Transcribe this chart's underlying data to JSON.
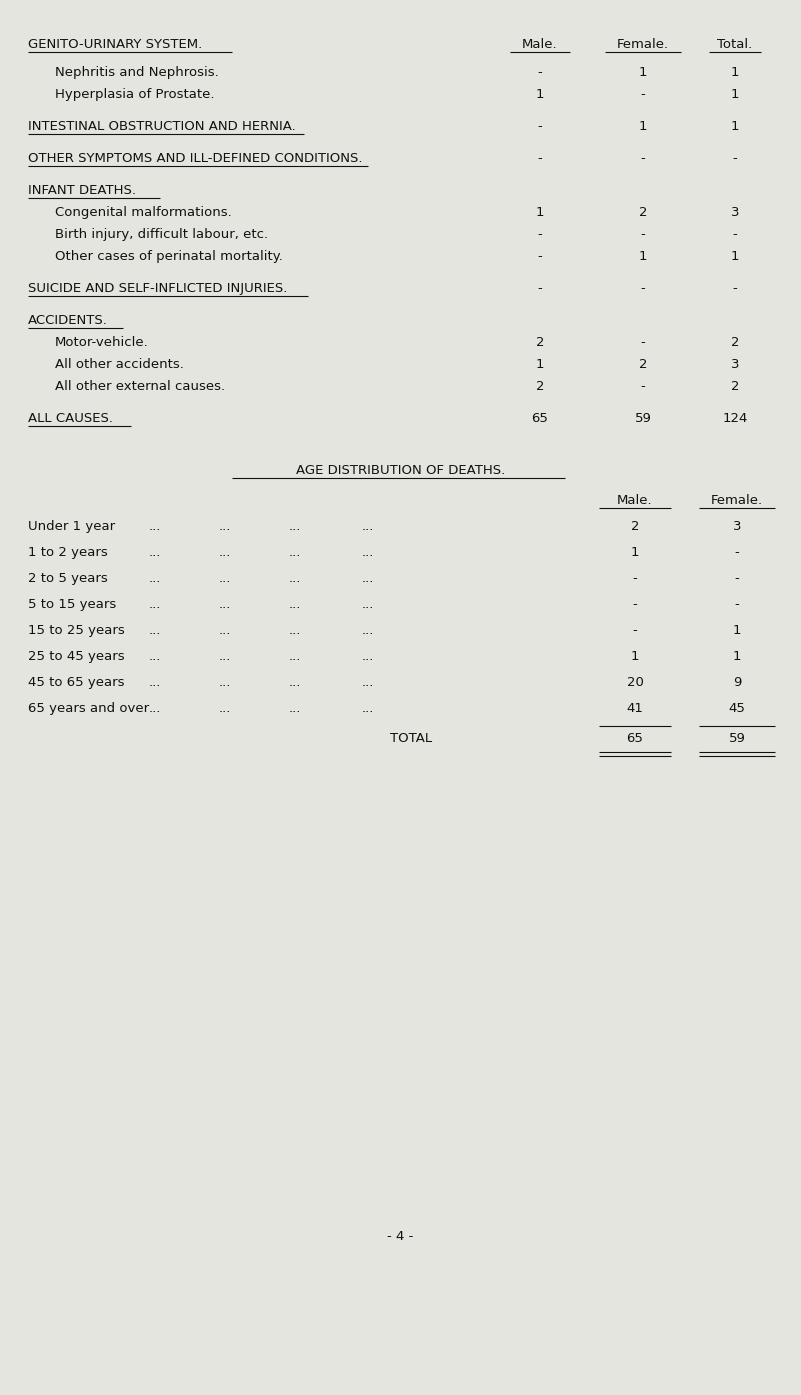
{
  "bg_color": "#e5e5e0",
  "text_color": "#1a1a1a",
  "page_number": "- 4 -",
  "section1": {
    "header": "GENITO-URINARY SYSTEM.",
    "col_headers": [
      "Male.",
      "Female.",
      "Total."
    ],
    "rows": [
      {
        "label": "Nephritis and Nephrosis.",
        "indent": true,
        "male": "-",
        "female": "1",
        "total": "1"
      },
      {
        "label": "Hyperplasia of Prostate.",
        "indent": true,
        "male": "1",
        "female": "-",
        "total": "1"
      }
    ]
  },
  "section2": {
    "header": "INTESTINAL OBSTRUCTION AND HERNIA.",
    "male": "-",
    "female": "1",
    "total": "1"
  },
  "section3": {
    "header": "OTHER SYMPTOMS AND ILL-DEFINED CONDITIONS.",
    "male": "-",
    "female": "-",
    "total": "-"
  },
  "section4": {
    "header": "INFANT DEATHS.",
    "rows": [
      {
        "label": "Congenital malformations.",
        "indent": true,
        "male": "1",
        "female": "2",
        "total": "3"
      },
      {
        "label": "Birth injury, difficult labour, etc.",
        "indent": true,
        "male": "-",
        "female": "-",
        "total": "-"
      },
      {
        "label": "Other cases of perinatal mortality.",
        "indent": true,
        "male": "-",
        "female": "1",
        "total": "1"
      }
    ]
  },
  "section5": {
    "header": "SUICIDE AND SELF-INFLICTED INJURIES.",
    "male": "-",
    "female": "-",
    "total": "-"
  },
  "section6": {
    "header": "ACCIDENTS.",
    "rows": [
      {
        "label": "Motor-vehicle.",
        "indent": true,
        "male": "2",
        "female": "-",
        "total": "2"
      },
      {
        "label": "All other accidents.",
        "indent": true,
        "male": "1",
        "female": "2",
        "total": "3"
      },
      {
        "label": "All other external causes.",
        "indent": true,
        "male": "2",
        "female": "-",
        "total": "2"
      }
    ]
  },
  "section7": {
    "header": "ALL CAUSES.",
    "male": "65",
    "female": "59",
    "total": "124"
  },
  "section8": {
    "header": "AGE DISTRIBUTION OF DEATHS.",
    "col_headers": [
      "Male.",
      "Female."
    ],
    "rows": [
      {
        "label": "Under 1 year",
        "male": "2",
        "female": "3"
      },
      {
        "label": "1 to 2 years",
        "male": "1",
        "female": "-"
      },
      {
        "label": "2 to 5 years",
        "male": "-",
        "female": "-"
      },
      {
        "label": "5 to 15 years",
        "male": "-",
        "female": "-"
      },
      {
        "label": "15 to 25 years",
        "male": "-",
        "female": "1"
      },
      {
        "label": "25 to 45 years",
        "male": "1",
        "female": "1"
      },
      {
        "label": "45 to 65 years",
        "male": "20",
        "female": "9"
      },
      {
        "label": "65 years and over",
        "male": "41",
        "female": "45"
      }
    ],
    "total_label": "TOTAL",
    "total_male": "65",
    "total_female": "59"
  }
}
